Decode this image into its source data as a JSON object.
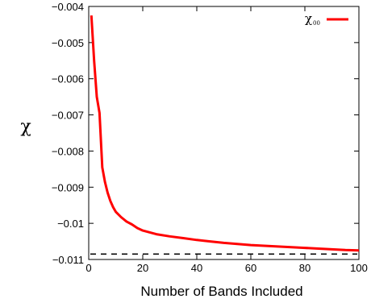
{
  "chart_data": {
    "type": "line",
    "title": "",
    "xlabel": "Number of Bands Included",
    "ylabel": "χ",
    "xlim": [
      0,
      100
    ],
    "ylim": [
      -0.011,
      -0.004
    ],
    "x_ticks": [
      0,
      20,
      40,
      60,
      80,
      100
    ],
    "x_tick_labels": [
      "0",
      "20",
      "40",
      "60",
      "80",
      "100"
    ],
    "y_ticks": [
      -0.011,
      -0.01,
      -0.009,
      -0.008,
      -0.007,
      -0.006,
      -0.005,
      -0.004
    ],
    "y_tick_labels": [
      "−0.011",
      "−0.01",
      "−0.009",
      "−0.008",
      "−0.007",
      "−0.006",
      "−0.005",
      "−0.004"
    ],
    "grid": false,
    "legend_position": "top-right",
    "series": [
      {
        "name": "χ",
        "name_subscript": "00",
        "color": "#ff0000",
        "style": "solid",
        "x": [
          1,
          2,
          3,
          4,
          5,
          6,
          7,
          8,
          9,
          10,
          12,
          14,
          16,
          18,
          20,
          25,
          30,
          35,
          40,
          45,
          50,
          55,
          60,
          65,
          70,
          75,
          80,
          85,
          90,
          95,
          100
        ],
        "y": [
          -0.00425,
          -0.0055,
          -0.0065,
          -0.00695,
          -0.00845,
          -0.00885,
          -0.00915,
          -0.00938,
          -0.00955,
          -0.00968,
          -0.00983,
          -0.00995,
          -0.01003,
          -0.01013,
          -0.0102,
          -0.0103,
          -0.01036,
          -0.01041,
          -0.01046,
          -0.0105,
          -0.01054,
          -0.01057,
          -0.0106,
          -0.01062,
          -0.01064,
          -0.01066,
          -0.01068,
          -0.0107,
          -0.01072,
          -0.01074,
          -0.01075
        ]
      }
    ],
    "reference_lines": [
      {
        "y": -0.01085,
        "color": "#000000",
        "style": "dashed"
      }
    ]
  }
}
